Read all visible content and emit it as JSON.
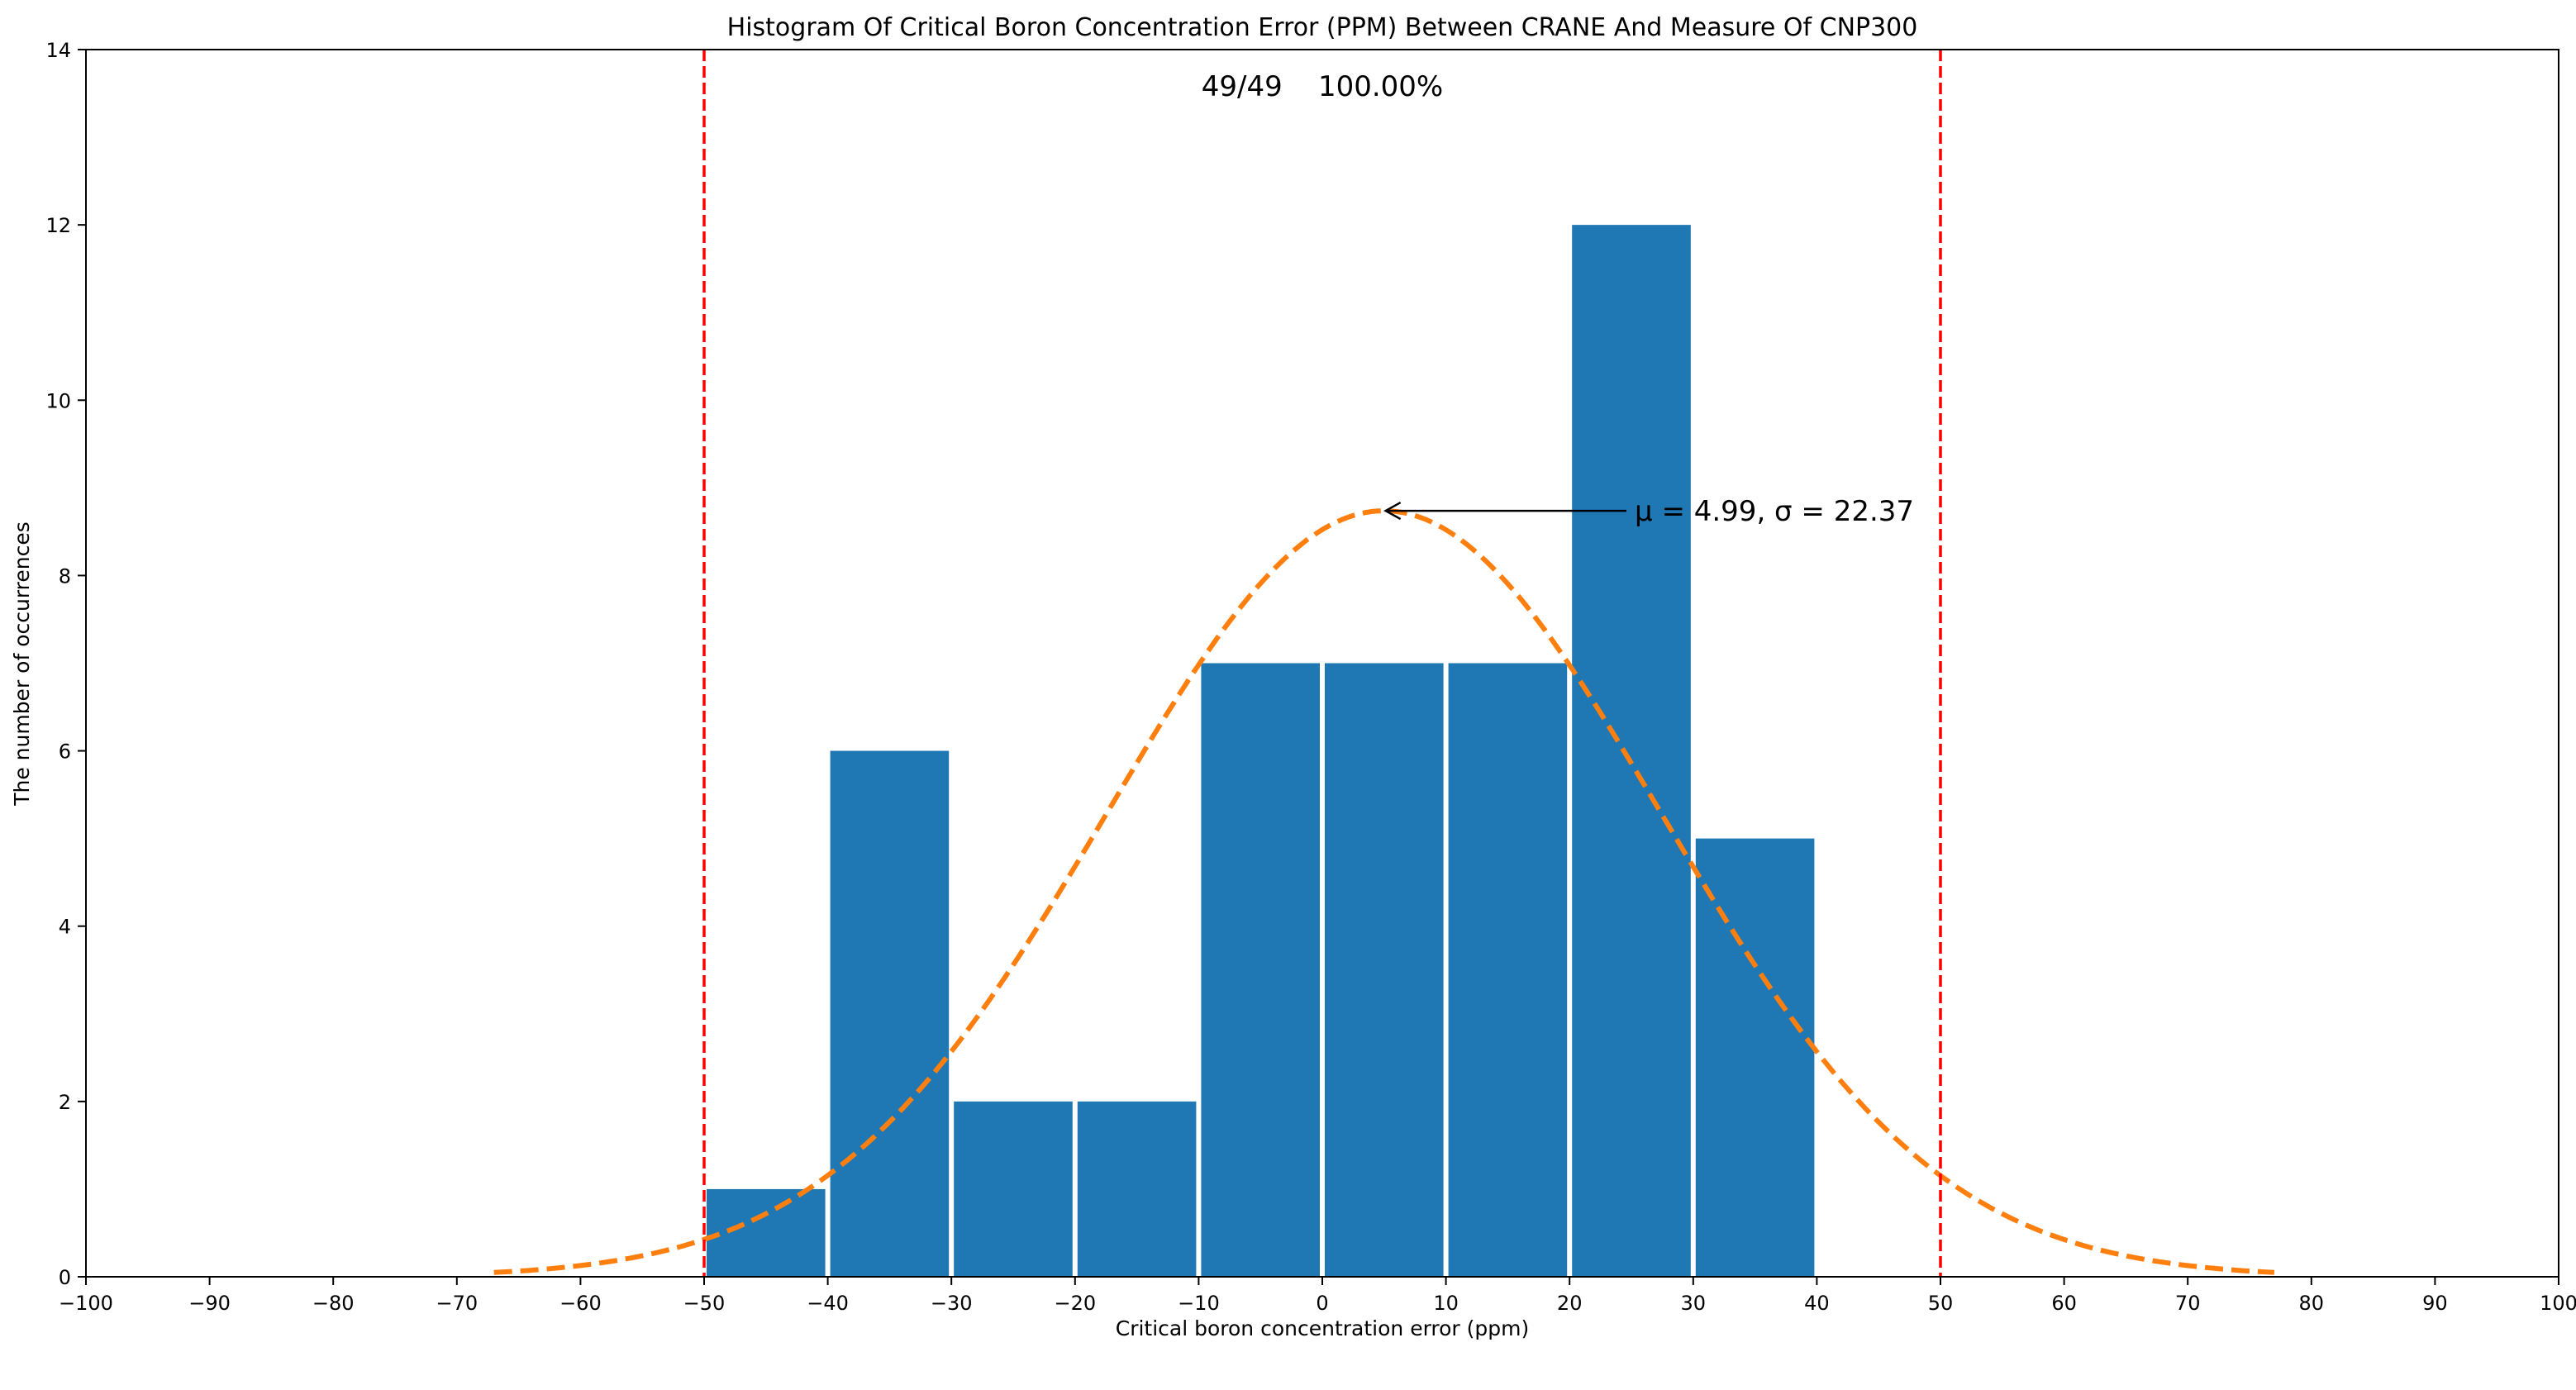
{
  "chart_data": {
    "type": "bar",
    "title": "Histogram Of Critical Boron Concentration Error (PPM) Between CRANE And Measure Of CNP300",
    "xlabel": "Critical boron concentration error (ppm)",
    "ylabel": "The number of occurrences",
    "xlim": [
      -100,
      100
    ],
    "ylim": [
      0,
      14
    ],
    "xticks": [
      "−100",
      "−90",
      "−80",
      "−70",
      "−60",
      "−50",
      "−40",
      "−30",
      "−20",
      "−10",
      "0",
      "10",
      "20",
      "30",
      "40",
      "50",
      "60",
      "70",
      "80",
      "90",
      "100"
    ],
    "xtick_values": [
      -100,
      -90,
      -80,
      -70,
      -60,
      -50,
      -40,
      -30,
      -20,
      -10,
      0,
      10,
      20,
      30,
      40,
      50,
      60,
      70,
      80,
      90,
      100
    ],
    "yticks": [
      "0",
      "2",
      "4",
      "6",
      "8",
      "10",
      "12",
      "14"
    ],
    "ytick_values": [
      0,
      2,
      4,
      6,
      8,
      10,
      12,
      14
    ],
    "bins": [
      -50,
      -40,
      -30,
      -20,
      -10,
      0,
      10,
      20,
      30,
      40
    ],
    "counts": [
      1,
      6,
      2,
      2,
      7,
      7,
      7,
      12,
      5
    ],
    "bar_color": "#1f77b4",
    "normal_fit": {
      "mu": 4.99,
      "sigma": 22.37,
      "n": 49,
      "bin_width": 10,
      "x_range": [
        -67,
        77
      ],
      "color": "#ff7f0e",
      "style": "dashed"
    },
    "limit_lines": {
      "x": [
        -50,
        50
      ],
      "color": "#ff0000",
      "style": "dashed"
    },
    "count_summary": "49/49    100.00%",
    "annotation": {
      "text": "μ = 4.99, σ = 22.37",
      "arrow_target_x": 4.99,
      "text_x": 25
    },
    "grid": false,
    "legend": "none"
  }
}
